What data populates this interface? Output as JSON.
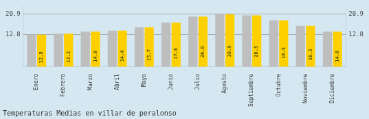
{
  "chart_data": {
    "type": "bar",
    "title": "Temperaturas Medias en villar de peralonso",
    "categories": [
      "Enero",
      "Febrero",
      "Marzo",
      "Abril",
      "Mayo",
      "Junio",
      "Julio",
      "Agosto",
      "Septiembre",
      "Octubre",
      "Noviembre",
      "Diciembre"
    ],
    "series": [
      {
        "color": "#BEBEBE",
        "values": [
          12.8,
          13.2,
          14.0,
          14.4,
          15.7,
          17.6,
          20.0,
          20.9,
          20.5,
          18.5,
          16.3,
          14.0
        ]
      },
      {
        "color": "#FFD000",
        "values": [
          12.8,
          13.2,
          14.0,
          14.4,
          15.7,
          17.6,
          20.0,
          20.9,
          20.5,
          18.5,
          16.3,
          14.0
        ],
        "value_labels": [
          "12.8",
          "13.2",
          "14.0",
          "14.4",
          "15.7",
          "17.6",
          "20.0",
          "20.9",
          "20.5",
          "18.5",
          "16.3",
          "14.0"
        ]
      }
    ],
    "ylim": [
      0,
      24.035
    ],
    "yticks": [
      12.8,
      20.9
    ],
    "y2lim": [
      0,
      24.035
    ],
    "y2ticks": [
      12.8,
      20.9
    ],
    "grid": true,
    "data_labels": true
  }
}
